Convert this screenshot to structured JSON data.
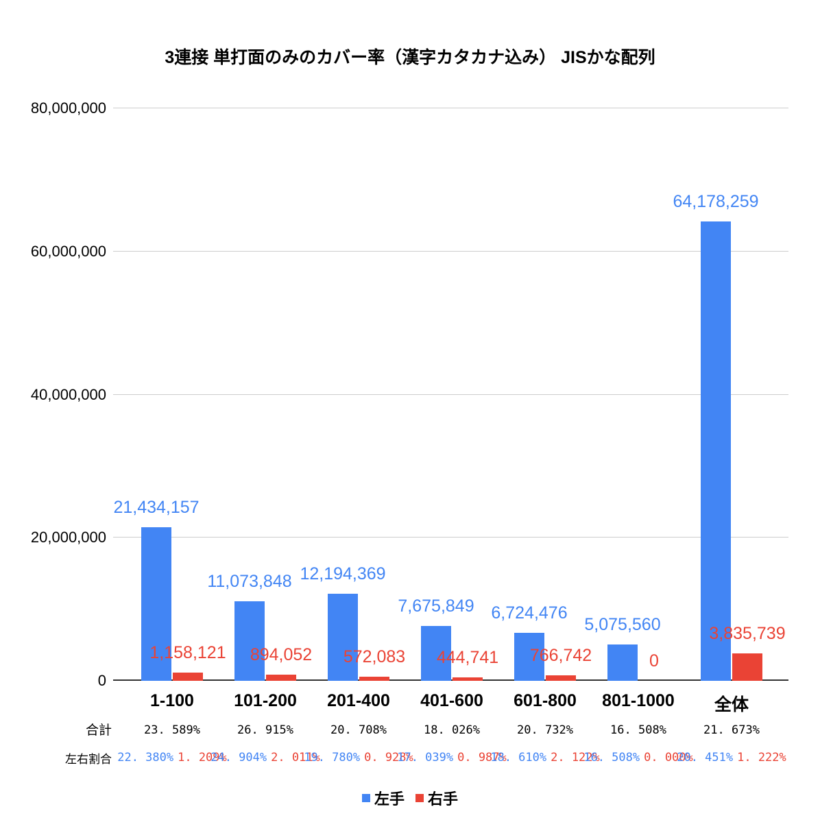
{
  "chart_data": {
    "type": "bar",
    "title": "3連接 単打面のみのカバー率（漢字カタカナ込み） JISかな配列",
    "categories": [
      "1-100",
      "101-200",
      "201-400",
      "401-600",
      "601-800",
      "801-1000",
      "全体"
    ],
    "series": [
      {
        "name": "左手",
        "key": "left-hand",
        "color": "#4285F4",
        "values": [
          21434157,
          11073848,
          12194369,
          7675849,
          6724476,
          5075560,
          64178259
        ],
        "labels": [
          "21,434,157",
          "11,073,848",
          "12,194,369",
          "7,675,849",
          "6,724,476",
          "5,075,560",
          "64,178,259"
        ]
      },
      {
        "name": "右手",
        "key": "right-hand",
        "color": "#EA4335",
        "values": [
          1158121,
          894052,
          572083,
          444741,
          766742,
          0,
          3835739
        ],
        "labels": [
          "1,158,121",
          "894,052",
          "572,083",
          "444,741",
          "766,742",
          "0",
          "3,835,739"
        ]
      }
    ],
    "ylim": [
      0,
      80000000
    ],
    "yticks": [
      0,
      20000000,
      40000000,
      60000000,
      80000000
    ],
    "ytick_labels": [
      "0",
      "20,000,000",
      "40,000,000",
      "60,000,000",
      "80,000,000"
    ],
    "grid": true,
    "legend_position": "bottom"
  },
  "table": {
    "rows": [
      {
        "label": "合計",
        "values": [
          "23. 589%",
          "26. 915%",
          "20. 708%",
          "18. 026%",
          "20. 732%",
          "16. 508%",
          "21. 673%"
        ]
      },
      {
        "label": "左右割合",
        "left_values": [
          "22. 380%",
          "24. 904%",
          "19. 780%",
          "17. 039%",
          "18. 610%",
          "16. 508%",
          "20. 451%"
        ],
        "right_values": [
          "1. 209%",
          "2. 011%",
          "0. 928%",
          "0. 987%",
          "2. 122%",
          "0. 000%",
          "1. 222%"
        ]
      }
    ]
  },
  "legend": {
    "items": [
      {
        "label": "左手",
        "color": "#4285F4"
      },
      {
        "label": "右手",
        "color": "#EA4335"
      }
    ]
  }
}
